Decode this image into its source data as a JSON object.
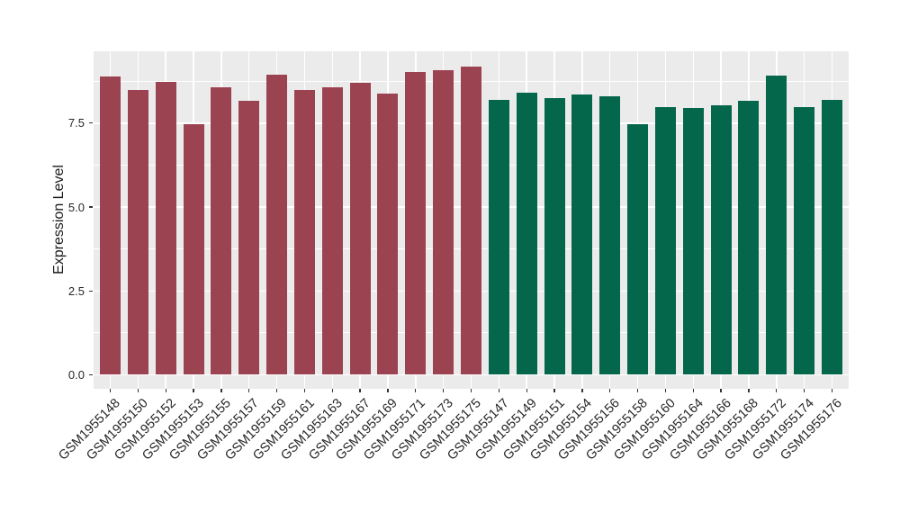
{
  "chart_data": {
    "type": "bar",
    "title": "",
    "xlabel": "",
    "ylabel": "Expression Level",
    "ylim": [
      0,
      9.64
    ],
    "ytick_values": [
      0,
      2.5,
      5,
      7.5
    ],
    "ytick_labels": [
      "0.0",
      "2.5",
      "5.0",
      "7.5"
    ],
    "minor_ytick_values": [
      1.25,
      3.75,
      6.25,
      8.75
    ],
    "grid": true,
    "legend_position": "none",
    "panel_background": "#EBEBEB",
    "gridline_color": "#FFFFFF",
    "group_colors": {
      "maroon": "#9C4352",
      "green": "#04664A"
    },
    "categories": [
      "GSM1955148",
      "GSM1955150",
      "GSM1955152",
      "GSM1955153",
      "GSM1955155",
      "GSM1955157",
      "GSM1955159",
      "GSM1955161",
      "GSM1955163",
      "GSM1955167",
      "GSM1955169",
      "GSM1955171",
      "GSM1955173",
      "GSM1955175",
      "GSM1955147",
      "GSM1955149",
      "GSM1955151",
      "GSM1955154",
      "GSM1955156",
      "GSM1955158",
      "GSM1955160",
      "GSM1955164",
      "GSM1955166",
      "GSM1955168",
      "GSM1955172",
      "GSM1955174",
      "GSM1955176"
    ],
    "values": [
      8.88,
      8.5,
      8.74,
      7.46,
      8.58,
      8.17,
      8.95,
      8.5,
      8.58,
      8.7,
      8.38,
      9.02,
      9.09,
      9.18,
      8.19,
      8.41,
      8.25,
      8.36,
      8.3,
      7.46,
      7.99,
      7.95,
      8.03,
      8.17,
      8.92,
      7.99,
      8.19
    ],
    "bar_groups": [
      "maroon",
      "maroon",
      "maroon",
      "maroon",
      "maroon",
      "maroon",
      "maroon",
      "maroon",
      "maroon",
      "maroon",
      "maroon",
      "maroon",
      "maroon",
      "maroon",
      "green",
      "green",
      "green",
      "green",
      "green",
      "green",
      "green",
      "green",
      "green",
      "green",
      "green",
      "green",
      "green"
    ]
  }
}
